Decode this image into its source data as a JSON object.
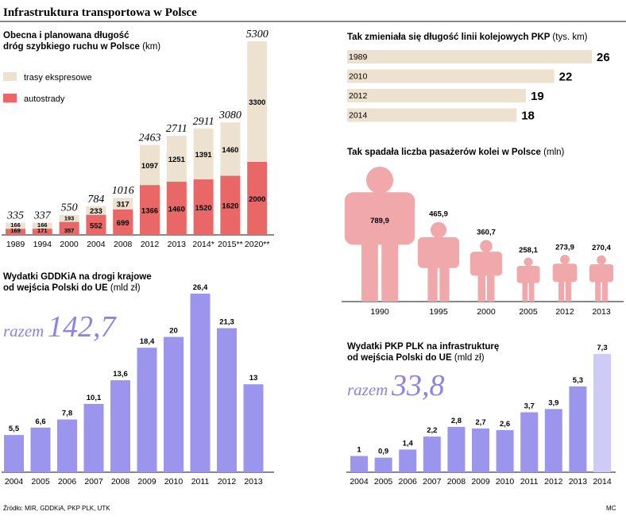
{
  "title": "Infrastruktura transportowa w Polsce",
  "source": "Źródło: MIR, GDDKiA, PKP PLK, UTK",
  "credit": "MC",
  "colors": {
    "expressway": "#ede1cf",
    "motorway": "#ea6767",
    "motorway_light": "#f3a6a6",
    "purple": "#9b95ee",
    "purple_light": "#cfcbf7",
    "rail_bar": "#ede1cf",
    "passenger": "#f0a8ab",
    "purple_text": "#8a84e6"
  },
  "roads": {
    "title_line1": "Obecna i planowana długość",
    "title_line2": "dróg szybkiego ruchu w Polsce",
    "unit": "(km)",
    "legend": [
      "trasy ekspresowe",
      "autostrady"
    ]
  },
  "gddkia": {
    "title_line1": "Wydatki GDDKiA na drogi krajowe",
    "title_line2": "od wejścia Polski do UE",
    "unit": "(mld zł)",
    "razem_word": "razem",
    "razem_value": "142,7"
  },
  "rail_length": {
    "title": "Tak zmieniała się długość linii kolejowych PKP",
    "unit": "(tys. km)"
  },
  "passengers": {
    "title": "Tak spadała liczba pasażerów kolei w Polsce",
    "unit": "(mln)"
  },
  "plk": {
    "title_line1": "Wydatki PKP PLK na infrastrukturę",
    "title_line2": "od wejścia Polski do UE",
    "unit": "(mld zł)",
    "razem_word": "razem",
    "razem_value": "33,8"
  },
  "chart_data": [
    {
      "type": "bar",
      "stacked": true,
      "categories": [
        "1989",
        "1994",
        "2000",
        "2004",
        "2008",
        "2012",
        "2013",
        "2014*",
        "2015**",
        "2020**"
      ],
      "series": [
        {
          "name": "autostrady",
          "values": [
            169,
            171,
            357,
            552,
            699,
            1366,
            1460,
            1520,
            1620,
            2000
          ]
        },
        {
          "name": "trasy ekspresowe",
          "values": [
            166,
            166,
            193,
            233,
            317,
            1097,
            1251,
            1391,
            1460,
            3300
          ]
        }
      ],
      "totals": [
        "335",
        "337",
        "550",
        "784",
        "1016",
        "2463",
        "2711",
        "2911",
        "3080",
        "5300"
      ],
      "value_labels": {
        "autostrady": [
          "169",
          "171",
          "357",
          "552",
          "699",
          "1366",
          "1460",
          "1520",
          "1620",
          "2000"
        ],
        "trasy ekspresowe": [
          "166",
          "166",
          "193",
          "233",
          "317",
          "1097",
          "1251",
          "1391",
          "1460",
          "3300"
        ]
      },
      "ylim": [
        0,
        5300
      ],
      "legend_position": "top-left"
    },
    {
      "type": "bar",
      "categories": [
        "2004",
        "2005",
        "2006",
        "2007",
        "2008",
        "2009",
        "2010",
        "2011",
        "2012",
        "2013"
      ],
      "values": [
        5.5,
        6.6,
        7.8,
        10.1,
        13.6,
        18.4,
        20,
        26.4,
        21.3,
        13
      ],
      "labels": [
        "5,5",
        "6,6",
        "7,8",
        "10,1",
        "13,6",
        "18,4",
        "20",
        "26,4",
        "21,3",
        "13"
      ],
      "ylim": [
        0,
        26.4
      ]
    },
    {
      "type": "bar",
      "orientation": "horizontal",
      "categories": [
        "1989",
        "2010",
        "2012",
        "2014"
      ],
      "values": [
        26,
        22,
        19,
        18
      ],
      "labels": [
        "26",
        "22",
        "19",
        "18"
      ],
      "xlim": [
        0,
        26
      ]
    },
    {
      "type": "bar",
      "marker": "person-pictogram",
      "categories": [
        "1990",
        "1995",
        "2000",
        "2005",
        "2012",
        "2013"
      ],
      "values": [
        789.9,
        465.9,
        360.7,
        258.1,
        273.9,
        270.4
      ],
      "labels": [
        "789,9",
        "465,9",
        "360,7",
        "258,1",
        "273,9",
        "270,4"
      ]
    },
    {
      "type": "bar",
      "categories": [
        "2004",
        "2005",
        "2006",
        "2007",
        "2008",
        "2009",
        "2010",
        "2011",
        "2012",
        "2013",
        "2014"
      ],
      "values": [
        1,
        0.9,
        1.4,
        2.2,
        2.8,
        2.7,
        2.6,
        3.7,
        3.9,
        5.3,
        7.3
      ],
      "labels": [
        "1",
        "0,9",
        "1,4",
        "2,2",
        "2,8",
        "2,7",
        "2,6",
        "3,7",
        "3,9",
        "5,3",
        "7,3"
      ],
      "highlight_last": true,
      "ylim": [
        0,
        7.3
      ]
    }
  ]
}
